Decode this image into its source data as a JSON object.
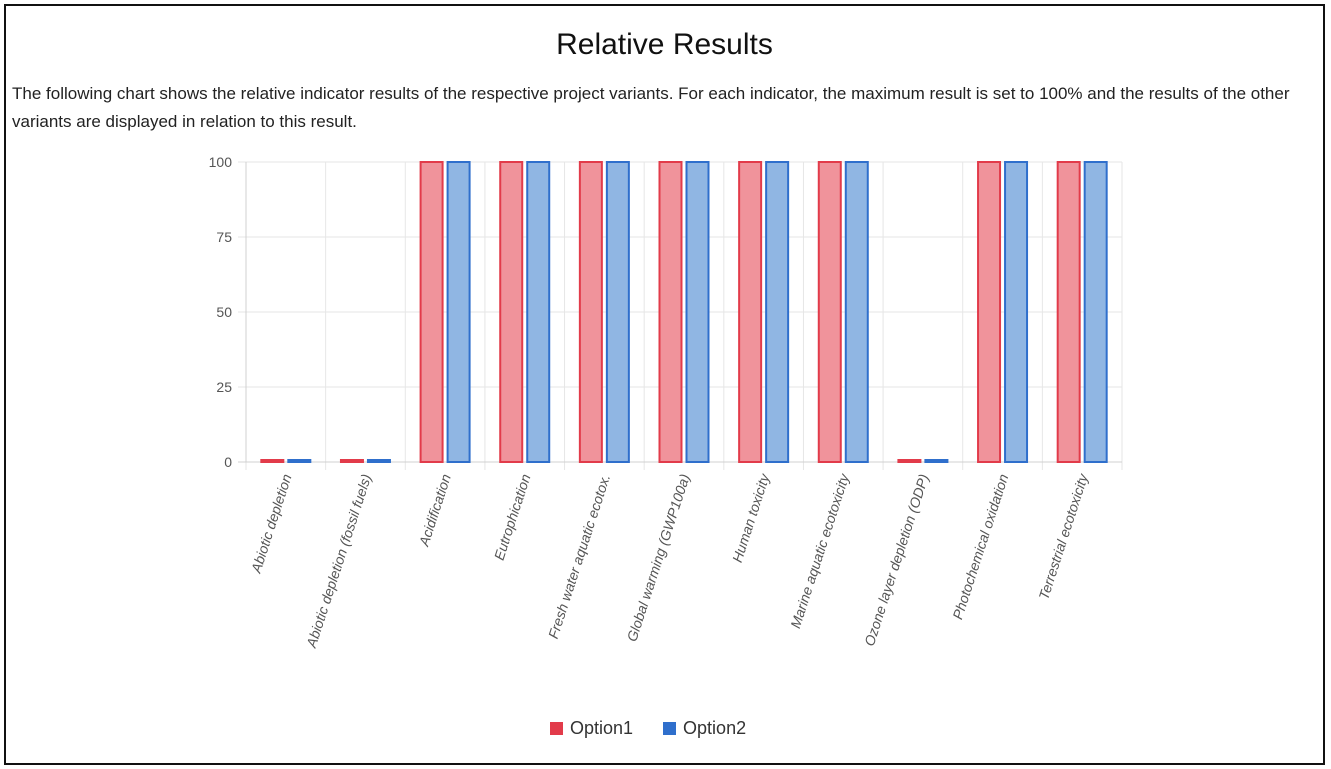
{
  "title": "Relative Results",
  "description": "The following chart shows the relative indicator results of the respective project variants. For each indicator, the maximum result is set to 100% and the results of the other variants are displayed in relation to this result.",
  "colors": {
    "option1_fill": "#f0939b",
    "option1_stroke": "#e23b4a",
    "option2_fill": "#90b6e3",
    "option2_stroke": "#2f6fcc",
    "grid": "#e6e6e6"
  },
  "chart_data": {
    "type": "bar",
    "categories": [
      "Abiotic depletion",
      "Abiotic depletion (fossil fuels)",
      "Acidification",
      "Eutrophication",
      "Fresh water aquatic ecotox.",
      "Global warming (GWP100a)",
      "Human toxicity",
      "Marine aquatic ecotoxicity",
      "Ozone layer depletion (ODP)",
      "Photochemical oxidation",
      "Terrestrial ecotoxicity"
    ],
    "series": [
      {
        "name": "Option1",
        "values": [
          0.3,
          0.3,
          100,
          100,
          100,
          100,
          100,
          100,
          0.3,
          100,
          100
        ]
      },
      {
        "name": "Option2",
        "values": [
          0.3,
          0.3,
          100,
          100,
          100,
          100,
          100,
          100,
          0.3,
          100,
          100
        ]
      }
    ],
    "ylim": [
      0,
      100
    ],
    "yticks": [
      0,
      25,
      50,
      75,
      100
    ],
    "grid": true,
    "legend_position": "bottom"
  }
}
